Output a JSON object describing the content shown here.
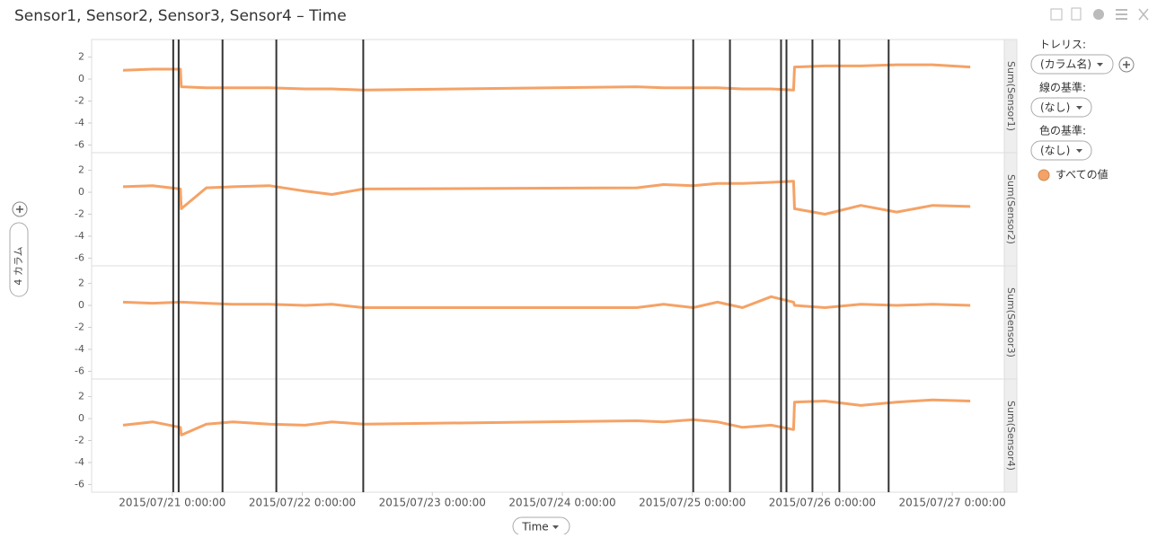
{
  "chart_data": {
    "type": "line",
    "title": "Sensor1, Sensor2, Sensor3, Sensor4 – Time",
    "x_label": "Time",
    "color": "#f5a266",
    "x": [
      "2015/07/20 14:54:00",
      "2015/07/20 20:22:00",
      "2015/07/21 1:29:00",
      "2015/07/21 1:39:00",
      "2015/07/21 6:17:00",
      "2015/07/21 11:15:00",
      "2015/07/21 17:53:00",
      "2015/07/22 0:30:00",
      "2015/07/22 5:28:00",
      "2015/07/22 11:15:00",
      "2015/07/24 13:44:00",
      "2015/07/24 18:42:00",
      "2015/07/25 0:10:00",
      "2015/07/25 4:38:00",
      "2015/07/25 9:16:00",
      "2015/07/25 14:34:00",
      "2015/07/25 18:42:00",
      "2015/07/25 18:52:00",
      "2015/07/26 0:30:00",
      "2015/07/26 7:07:00",
      "2015/07/26 13:44:00",
      "2015/07/26 20:22:00",
      "2015/07/27 3:19:00"
    ],
    "series": [
      {
        "name": "Sum(Sensor1)",
        "values": [
          0.8,
          0.9,
          0.9,
          -0.7,
          -0.8,
          -0.8,
          -0.8,
          -0.9,
          -0.9,
          -1.0,
          -0.7,
          -0.8,
          -0.8,
          -0.8,
          -0.9,
          -0.9,
          -1.0,
          1.1,
          1.2,
          1.2,
          1.3,
          1.3,
          1.1
        ]
      },
      {
        "name": "Sum(Sensor2)",
        "values": [
          0.5,
          0.6,
          0.3,
          -1.5,
          0.4,
          0.5,
          0.6,
          0.1,
          -0.2,
          0.3,
          0.4,
          0.7,
          0.6,
          0.8,
          0.8,
          0.9,
          1.0,
          -1.5,
          -2.0,
          -1.2,
          -1.8,
          -1.2,
          -1.3
        ]
      },
      {
        "name": "Sum(Sensor3)",
        "values": [
          0.3,
          0.2,
          0.3,
          0.3,
          0.2,
          0.1,
          0.1,
          0.0,
          0.1,
          -0.2,
          -0.2,
          0.1,
          -0.2,
          0.3,
          -0.2,
          0.8,
          0.3,
          0.0,
          -0.2,
          0.1,
          0.0,
          0.1,
          0.0
        ]
      },
      {
        "name": "Sum(Sensor4)",
        "values": [
          -0.6,
          -0.3,
          -0.8,
          -1.5,
          -0.5,
          -0.3,
          -0.5,
          -0.6,
          -0.3,
          -0.5,
          -0.2,
          -0.3,
          -0.1,
          -0.3,
          -0.8,
          -0.6,
          -1.0,
          1.5,
          1.6,
          1.2,
          1.5,
          1.7,
          1.6
        ]
      }
    ],
    "xlim": [
      "2015/07/20 09:06:00",
      "2015/07/27 09:36:00"
    ],
    "xticks": [
      "2015/07/21 0:00:00",
      "2015/07/22 0:00:00",
      "2015/07/23 0:00:00",
      "2015/07/24 0:00:00",
      "2015/07/25 0:00:00",
      "2015/07/26 0:00:00",
      "2015/07/27 0:00:00"
    ],
    "ylim": [
      -6.7,
      3.6
    ],
    "yticks": [
      2,
      0,
      -2,
      -4,
      -6
    ],
    "vlines": [
      "2015/07/21 0:10:00",
      "2015/07/21 1:10:00",
      "2015/07/21 9:16:00",
      "2015/07/21 19:12:00",
      "2015/07/22 11:15:00",
      "2015/07/25 0:10:00",
      "2015/07/25 6:57:00",
      "2015/07/25 16:23:00",
      "2015/07/25 17:23:00",
      "2015/07/25 22:11:00",
      "2015/07/26 3:09:00",
      "2015/07/26 12:15:00"
    ],
    "vline_color": "#333333"
  },
  "ui": {
    "columns": "4 カラム",
    "trellis_label": "トレリス:",
    "trellis_value": "(カラム名)",
    "line_by_label": "線の基準:",
    "line_by_value": "(なし)",
    "color_by_label": "色の基準:",
    "color_by_value": "(なし)",
    "legend_entry": "すべての値"
  }
}
